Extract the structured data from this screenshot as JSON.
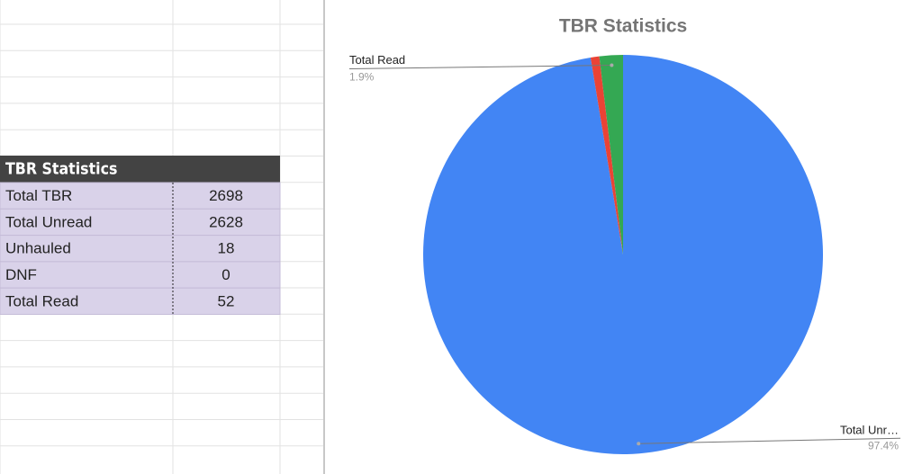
{
  "table": {
    "title": "TBR Statistics",
    "rows": [
      [
        "Total TBR",
        2698
      ],
      [
        "Total Unread",
        2628
      ],
      [
        "Unhauled",
        18
      ],
      [
        "DNF",
        0
      ],
      [
        "Total Read",
        52
      ]
    ]
  },
  "chart_data": {
    "type": "pie",
    "title": "TBR Statistics",
    "categories": [
      "Total Unr…",
      null,
      "Total Read"
    ],
    "values": [
      97.4,
      0.7,
      1.9
    ],
    "value_labels": [
      "97.4%",
      null,
      "1.9%"
    ],
    "colors": [
      "#4285f4",
      "#ea4335",
      "#34a853"
    ]
  }
}
